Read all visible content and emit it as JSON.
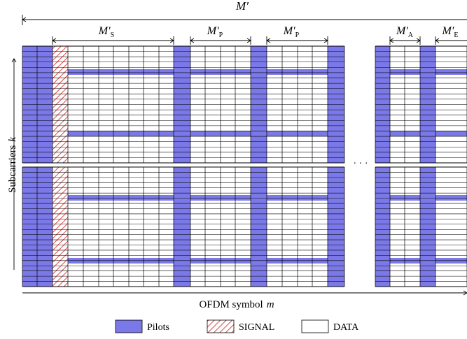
{
  "figure": {
    "label_total": "M′",
    "label_s": "M′",
    "sub_s": "S",
    "label_p1": "M′",
    "sub_p1": "P",
    "label_p2": "M′",
    "sub_p2": "P",
    "label_a": "M′",
    "sub_a": "A",
    "label_e": "M′",
    "sub_e": "E",
    "y_axis_label": "Subcarriers",
    "y_axis_var": "k",
    "x_axis_label": "OFDM symbol",
    "x_axis_var": "m",
    "ellipsis": "· · ·"
  },
  "legend": {
    "pilots": "Pilots",
    "signal": "SIGNAL",
    "data": "DATA"
  },
  "colors": {
    "pilot": "#7b79e8",
    "signal_hatch": "#d62020",
    "data": "#ffffff",
    "grid_line": "#000000"
  }
}
